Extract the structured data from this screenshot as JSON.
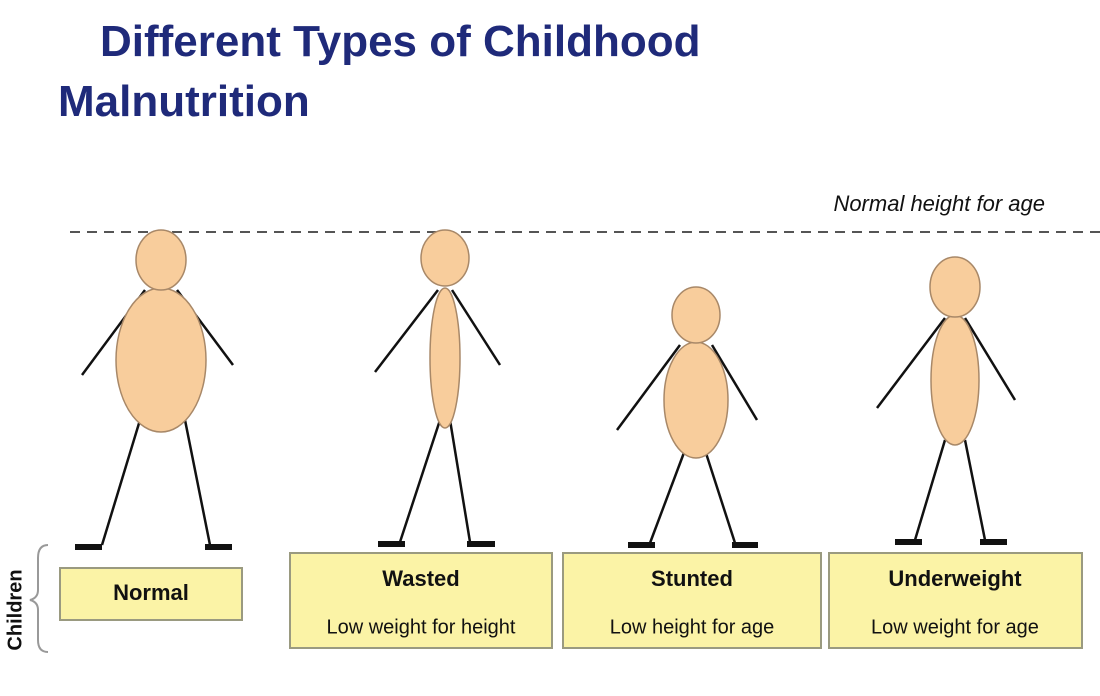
{
  "title": "Different Types of Childhood Malnutrition",
  "reference_label": "Normal height for age",
  "side_label": "Children",
  "categories": [
    {
      "label": "Normal"
    },
    {
      "label": "Wasted",
      "description": "Low weight for height"
    },
    {
      "label": "Stunted",
      "description": "Low height for age"
    },
    {
      "label": "Underweight",
      "description": "Low weight for age"
    }
  ]
}
